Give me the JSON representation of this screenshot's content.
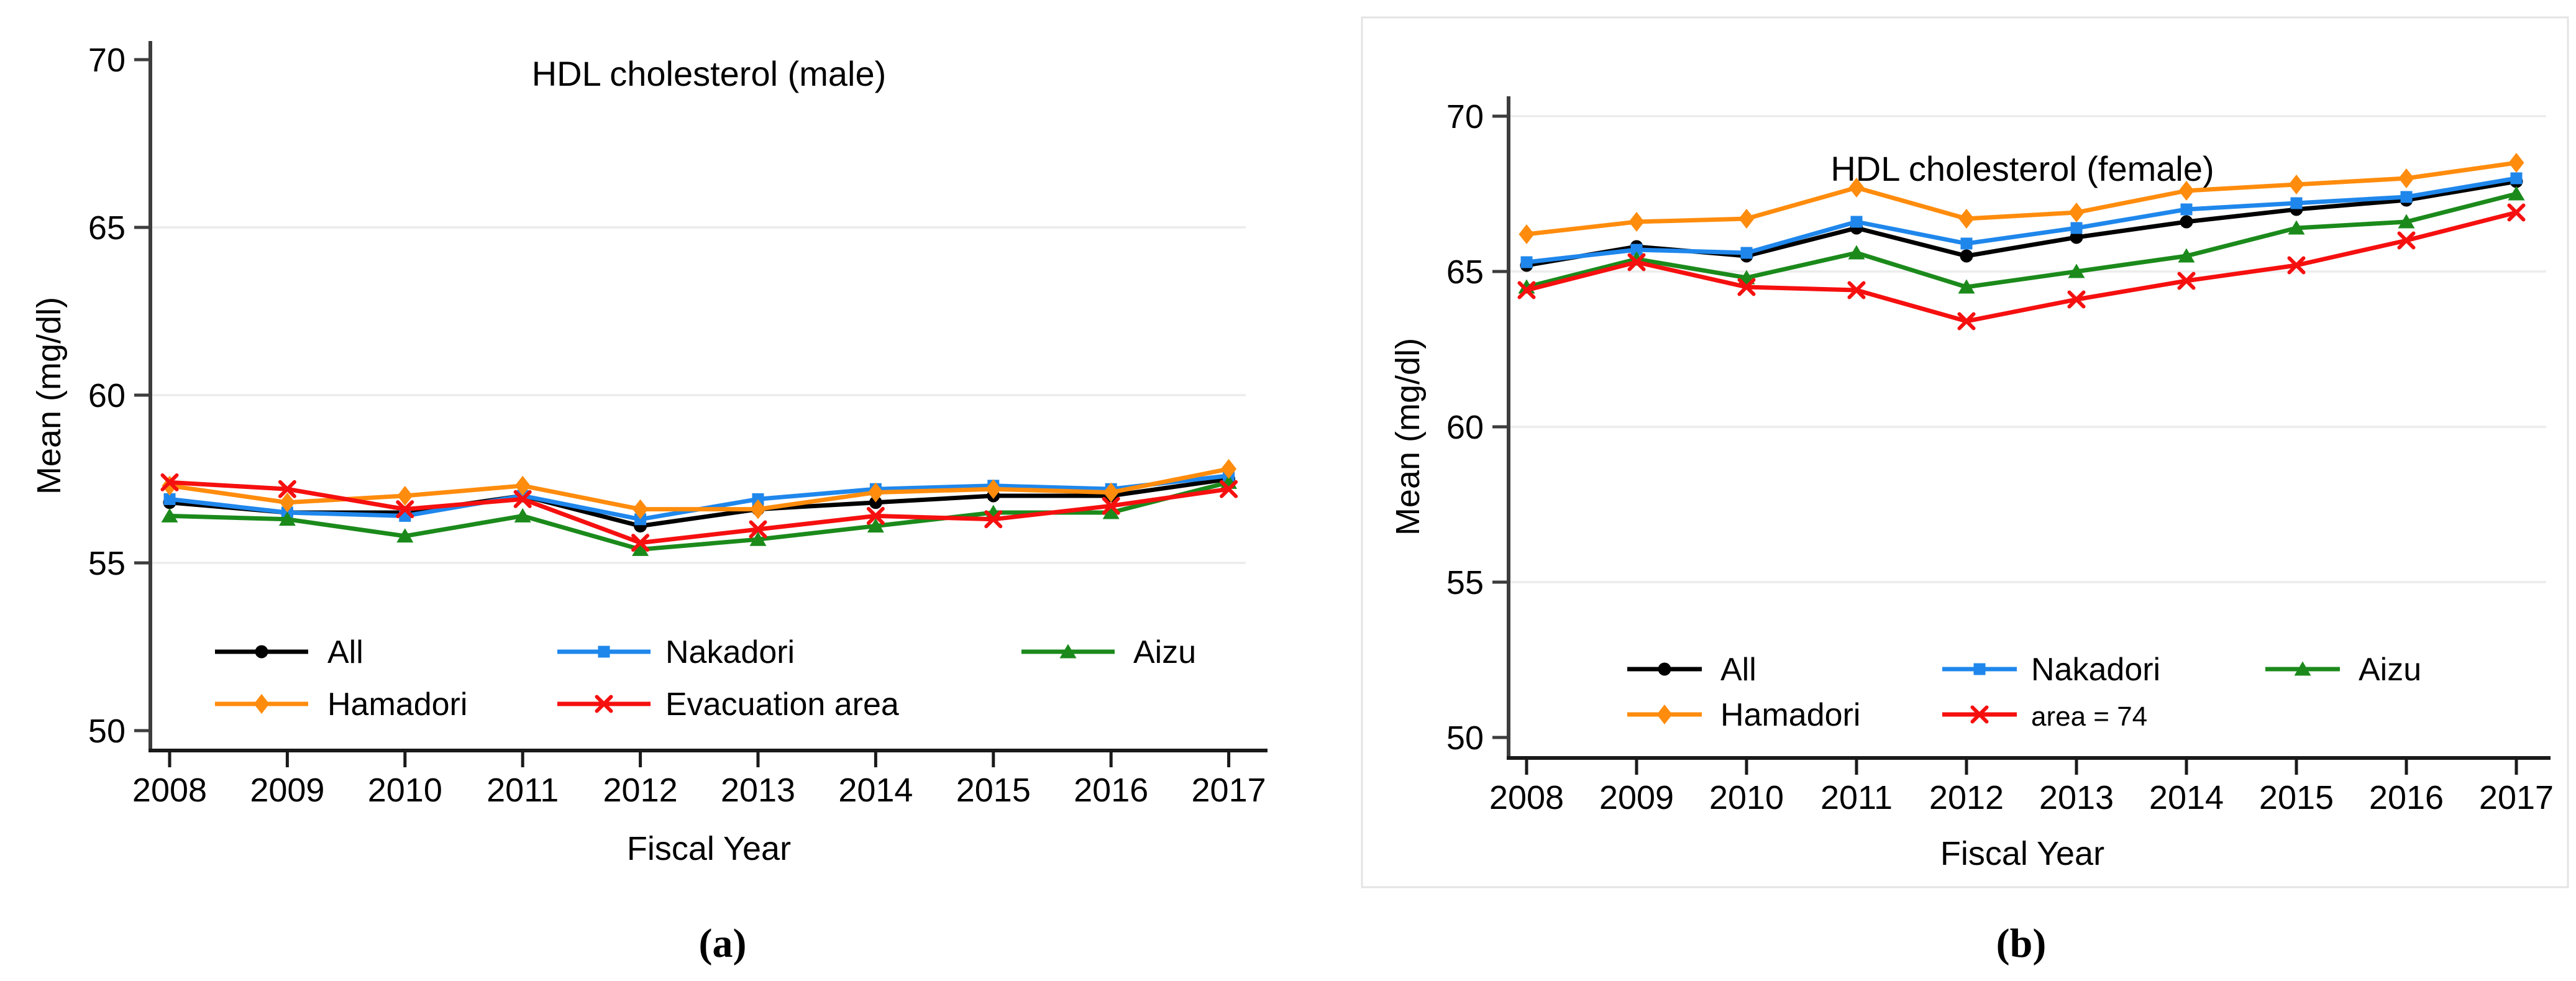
{
  "figure": {
    "captions": {
      "a": "(a)",
      "b": "(b)"
    },
    "colors": {
      "all": "#000000",
      "nakadori": "#1f87ec",
      "aizu": "#1b8a1b",
      "hamadori": "#ff8c0d",
      "evacuation": "#f5100f",
      "gridline": "#ececec",
      "axis": "#3d3d3d",
      "panel_border": "#e4e4e4"
    }
  },
  "chart_data": [
    {
      "id": "male",
      "type": "line",
      "title": "HDL cholesterol (male)",
      "xlabel": "Fiscal Year",
      "ylabel": "Mean (mg/dl)",
      "caption": "(a)",
      "x": [
        2008,
        2009,
        2010,
        2011,
        2012,
        2013,
        2014,
        2015,
        2016,
        2017
      ],
      "ylim": [
        50,
        70
      ],
      "yticks": [
        50,
        55,
        60,
        65,
        70
      ],
      "gridlines_at": [
        55,
        60,
        65
      ],
      "grid_on": true,
      "panel_border": false,
      "legend_position": "inside-bottom-left",
      "legend_layout": [
        [
          "All",
          "Nakadori",
          "Aizu"
        ],
        [
          "Hamadori",
          "Evacuation area"
        ]
      ],
      "series": [
        {
          "name": "All",
          "color": "#000000",
          "marker": "circle",
          "values": [
            56.8,
            56.5,
            56.5,
            57.0,
            56.1,
            56.6,
            56.8,
            57.0,
            57.0,
            57.5
          ]
        },
        {
          "name": "Nakadori",
          "color": "#1f87ec",
          "marker": "square",
          "values": [
            56.9,
            56.5,
            56.4,
            57.0,
            56.3,
            56.9,
            57.2,
            57.3,
            57.2,
            57.6
          ]
        },
        {
          "name": "Aizu",
          "color": "#1b8a1b",
          "marker": "triangle",
          "values": [
            56.4,
            56.3,
            55.8,
            56.4,
            55.4,
            55.7,
            56.1,
            56.5,
            56.5,
            57.4
          ]
        },
        {
          "name": "Hamadori",
          "color": "#ff8c0d",
          "marker": "diamond",
          "values": [
            57.3,
            56.8,
            57.0,
            57.3,
            56.6,
            56.6,
            57.1,
            57.2,
            57.1,
            57.8
          ]
        },
        {
          "name": "Evacuation area",
          "color": "#f5100f",
          "marker": "x",
          "values": [
            57.4,
            57.2,
            56.6,
            56.9,
            55.6,
            56.0,
            56.4,
            56.3,
            56.7,
            57.2
          ]
        }
      ]
    },
    {
      "id": "female",
      "type": "line",
      "title": "HDL cholesterol (female)",
      "xlabel": "Fiscal Year",
      "ylabel": "Mean (mg/dl)",
      "caption": "(b)",
      "x": [
        2008,
        2009,
        2010,
        2011,
        2012,
        2013,
        2014,
        2015,
        2016,
        2017
      ],
      "ylim": [
        50,
        70
      ],
      "yticks": [
        50,
        55,
        60,
        65,
        70
      ],
      "gridlines_at": [
        55,
        60,
        65,
        70
      ],
      "grid_on": true,
      "panel_border": true,
      "legend_position": "inside-bottom-left",
      "legend_layout": [
        [
          "All",
          "Nakadori",
          "Aizu"
        ],
        [
          "Hamadori",
          "area = 74"
        ]
      ],
      "small_label": "area = 74",
      "series": [
        {
          "name": "All",
          "color": "#000000",
          "marker": "circle",
          "values": [
            65.2,
            65.8,
            65.5,
            66.4,
            65.5,
            66.1,
            66.6,
            67.0,
            67.3,
            67.9
          ]
        },
        {
          "name": "Nakadori",
          "color": "#1f87ec",
          "marker": "square",
          "values": [
            65.3,
            65.7,
            65.6,
            66.6,
            65.9,
            66.4,
            67.0,
            67.2,
            67.4,
            68.0
          ]
        },
        {
          "name": "Aizu",
          "color": "#1b8a1b",
          "marker": "triangle",
          "values": [
            64.5,
            65.4,
            64.8,
            65.6,
            64.5,
            65.0,
            65.5,
            66.4,
            66.6,
            67.5
          ]
        },
        {
          "name": "Hamadori",
          "color": "#ff8c0d",
          "marker": "diamond",
          "values": [
            66.2,
            66.6,
            66.7,
            67.7,
            66.7,
            66.9,
            67.6,
            67.8,
            68.0,
            68.5
          ]
        },
        {
          "name": "area = 74",
          "color": "#f5100f",
          "marker": "x",
          "values": [
            64.4,
            65.3,
            64.5,
            64.4,
            63.4,
            64.1,
            64.7,
            65.2,
            66.0,
            66.9
          ]
        }
      ]
    }
  ]
}
